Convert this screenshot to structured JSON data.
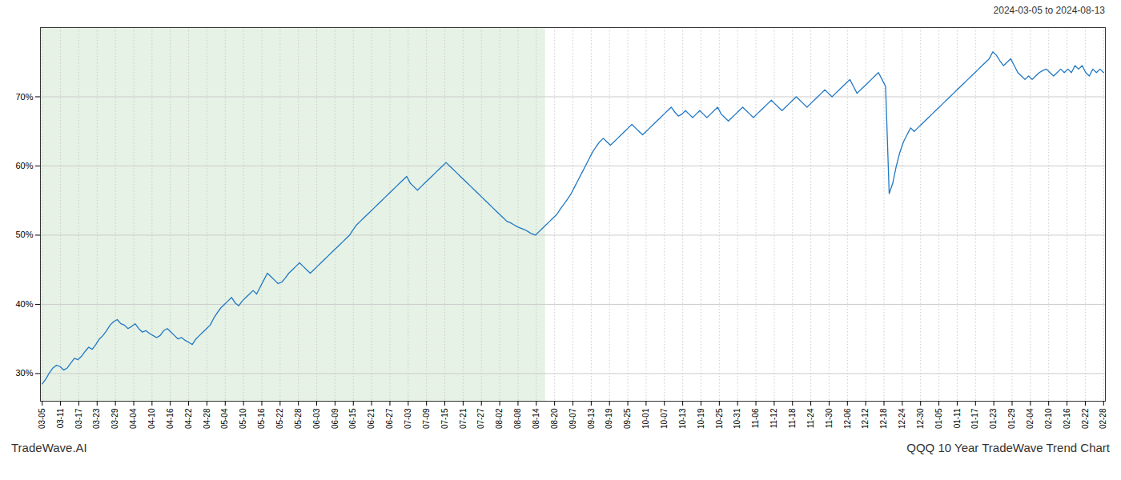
{
  "chart_data": {
    "type": "line",
    "subtitle": "2024-03-05 to 2024-08-13",
    "annotations": [
      "TradeWave.AI",
      "QQQ 10 Year TradeWave Trend Chart"
    ],
    "color": "#2178c4",
    "grid": true,
    "shaded_range": [
      -2.5603,
      140.819
    ],
    "shade_color": "#d4ead4",
    "xlim": [
      -0.5,
      297.5
    ],
    "xticks": [
      {
        "value": 0,
        "label": "03-05"
      },
      {
        "value": 5.1207,
        "label": "03-11"
      },
      {
        "value": 10.2414,
        "label": "03-17"
      },
      {
        "value": 15.3621,
        "label": "03-23"
      },
      {
        "value": 20.4828,
        "label": "03-29"
      },
      {
        "value": 25.6034,
        "label": "04-04"
      },
      {
        "value": 30.7241,
        "label": "04-10"
      },
      {
        "value": 35.8448,
        "label": "04-16"
      },
      {
        "value": 40.9655,
        "label": "04-22"
      },
      {
        "value": 46.0862,
        "label": "04-28"
      },
      {
        "value": 51.2069,
        "label": "05-04"
      },
      {
        "value": 56.3276,
        "label": "05-10"
      },
      {
        "value": 61.4483,
        "label": "05-16"
      },
      {
        "value": 66.569,
        "label": "05-22"
      },
      {
        "value": 71.6897,
        "label": "05-28"
      },
      {
        "value": 76.8103,
        "label": "06-03"
      },
      {
        "value": 81.931,
        "label": "06-09"
      },
      {
        "value": 87.0517,
        "label": "06-15"
      },
      {
        "value": 92.1724,
        "label": "06-21"
      },
      {
        "value": 97.2931,
        "label": "06-27"
      },
      {
        "value": 102.4138,
        "label": "07-03"
      },
      {
        "value": 107.5345,
        "label": "07-09"
      },
      {
        "value": 112.6552,
        "label": "07-15"
      },
      {
        "value": 117.7759,
        "label": "07-21"
      },
      {
        "value": 122.8966,
        "label": "07-27"
      },
      {
        "value": 128.0172,
        "label": "08-02"
      },
      {
        "value": 133.1379,
        "label": "08-08"
      },
      {
        "value": 138.2586,
        "label": "08-14"
      },
      {
        "value": 143.3793,
        "label": "08-20"
      },
      {
        "value": 148.5,
        "label": "09-07"
      },
      {
        "value": 153.6207,
        "label": "09-13"
      },
      {
        "value": 158.7414,
        "label": "09-19"
      },
      {
        "value": 163.8621,
        "label": "09-25"
      },
      {
        "value": 168.9828,
        "label": "10-01"
      },
      {
        "value": 174.1034,
        "label": "10-07"
      },
      {
        "value": 179.2241,
        "label": "10-13"
      },
      {
        "value": 184.3448,
        "label": "10-19"
      },
      {
        "value": 189.4655,
        "label": "10-25"
      },
      {
        "value": 194.5862,
        "label": "10-31"
      },
      {
        "value": 199.7069,
        "label": "11-06"
      },
      {
        "value": 204.8276,
        "label": "11-12"
      },
      {
        "value": 209.9483,
        "label": "11-18"
      },
      {
        "value": 215.069,
        "label": "11-24"
      },
      {
        "value": 220.1897,
        "label": "11-30"
      },
      {
        "value": 225.3103,
        "label": "12-06"
      },
      {
        "value": 230.431,
        "label": "12-12"
      },
      {
        "value": 235.5517,
        "label": "12-18"
      },
      {
        "value": 240.6724,
        "label": "12-24"
      },
      {
        "value": 245.7931,
        "label": "12-30"
      },
      {
        "value": 250.9138,
        "label": "01-05"
      },
      {
        "value": 256.0345,
        "label": "01-11"
      },
      {
        "value": 261.1552,
        "label": "01-17"
      },
      {
        "value": 266.2759,
        "label": "01-23"
      },
      {
        "value": 271.3966,
        "label": "01-29"
      },
      {
        "value": 276.5172,
        "label": "02-04"
      },
      {
        "value": 281.6379,
        "label": "02-10"
      },
      {
        "value": 286.7586,
        "label": "02-16"
      },
      {
        "value": 291.8793,
        "label": "02-22"
      },
      {
        "value": 297,
        "label": "02-28"
      }
    ],
    "ylim": [
      26,
      80
    ],
    "yticks": [
      {
        "value": 30,
        "label": "30%"
      },
      {
        "value": 40,
        "label": "40%"
      },
      {
        "value": 50,
        "label": "50%"
      },
      {
        "value": 60,
        "label": "60%"
      },
      {
        "value": 70,
        "label": "70%"
      }
    ],
    "x": [
      0,
      1,
      2,
      3,
      4,
      5,
      6,
      7,
      8,
      9,
      10,
      11,
      12,
      13,
      14,
      15,
      16,
      17,
      18,
      19,
      20,
      21,
      22,
      23,
      24,
      25,
      26,
      27,
      28,
      29,
      30,
      31,
      32,
      33,
      34,
      35,
      36,
      37,
      38,
      39,
      40,
      41,
      42,
      43,
      44,
      45,
      46,
      47,
      48,
      49,
      50,
      51,
      52,
      53,
      54,
      55,
      56,
      57,
      58,
      59,
      60,
      61,
      62,
      63,
      64,
      65,
      66,
      67,
      68,
      69,
      70,
      71,
      72,
      73,
      74,
      75,
      76,
      77,
      78,
      79,
      80,
      81,
      82,
      83,
      84,
      85,
      86,
      87,
      88,
      89,
      90,
      91,
      92,
      93,
      94,
      95,
      96,
      97,
      98,
      99,
      100,
      101,
      102,
      103,
      104,
      105,
      106,
      107,
      108,
      109,
      110,
      111,
      112,
      113,
      114,
      115,
      116,
      117,
      118,
      119,
      120,
      121,
      122,
      123,
      124,
      125,
      126,
      127,
      128,
      129,
      130,
      131,
      132,
      133,
      134,
      135,
      136,
      137,
      138,
      139,
      140,
      141,
      142,
      143,
      144,
      145,
      146,
      147,
      148,
      149,
      150,
      151,
      152,
      153,
      154,
      155,
      156,
      157,
      158,
      159,
      160,
      161,
      162,
      163,
      164,
      165,
      166,
      167,
      168,
      169,
      170,
      171,
      172,
      173,
      174,
      175,
      176,
      177,
      178,
      179,
      180,
      181,
      182,
      183,
      184,
      185,
      186,
      187,
      188,
      189,
      190,
      191,
      192,
      193,
      194,
      195,
      196,
      197,
      198,
      199,
      200,
      201,
      202,
      203,
      204,
      205,
      206,
      207,
      208,
      209,
      210,
      211,
      212,
      213,
      214,
      215,
      216,
      217,
      218,
      219,
      220,
      221,
      222,
      223,
      224,
      225,
      226,
      227,
      228,
      229,
      230,
      231,
      232,
      233,
      234,
      235,
      236,
      237,
      238,
      239,
      240,
      241,
      242,
      243,
      244,
      245,
      246,
      247,
      248,
      249,
      250,
      251,
      252,
      253,
      254,
      255,
      256,
      257,
      258,
      259,
      260,
      261,
      262,
      263,
      264,
      265,
      266,
      267,
      268,
      269,
      270,
      271,
      272,
      273,
      274,
      275,
      276,
      277,
      278,
      279,
      280,
      281,
      282,
      283,
      284,
      285,
      286,
      287,
      288,
      289,
      290,
      291,
      292,
      293,
      294,
      295,
      296,
      297
    ],
    "values": [
      28.5,
      29.2,
      30.1,
      30.8,
      31.2,
      31.0,
      30.5,
      30.8,
      31.5,
      32.2,
      32.0,
      32.5,
      33.2,
      33.8,
      33.5,
      34.2,
      35.0,
      35.5,
      36.2,
      37.0,
      37.5,
      37.8,
      37.2,
      37.0,
      36.5,
      36.8,
      37.2,
      36.5,
      36.0,
      36.2,
      35.8,
      35.5,
      35.2,
      35.5,
      36.2,
      36.5,
      36.0,
      35.5,
      35.0,
      35.2,
      34.8,
      34.5,
      34.2,
      35.0,
      35.5,
      36.0,
      36.5,
      37.0,
      38.0,
      38.8,
      39.5,
      40.0,
      40.5,
      41.0,
      40.2,
      39.8,
      40.5,
      41.0,
      41.5,
      42.0,
      41.5,
      42.5,
      43.5,
      44.5,
      44.0,
      43.5,
      43.0,
      43.2,
      43.8,
      44.5,
      45.0,
      45.5,
      46.0,
      45.5,
      45.0,
      44.5,
      45.0,
      45.5,
      46.0,
      46.5,
      47.0,
      47.5,
      48.0,
      48.5,
      49.0,
      49.5,
      50.0,
      50.8,
      51.5,
      52.0,
      52.5,
      53.0,
      53.5,
      54.0,
      54.5,
      55.0,
      55.5,
      56.0,
      56.5,
      57.0,
      57.5,
      58.0,
      58.5,
      57.5,
      57.0,
      56.5,
      57.0,
      57.5,
      58.0,
      58.5,
      59.0,
      59.5,
      60.0,
      60.5,
      60.0,
      59.5,
      59.0,
      58.5,
      58.0,
      57.5,
      57.0,
      56.5,
      56.0,
      55.5,
      55.0,
      54.5,
      54.0,
      53.5,
      53.0,
      52.5,
      52.0,
      51.8,
      51.5,
      51.2,
      51.0,
      50.8,
      50.5,
      50.2,
      50.0,
      50.5,
      51.0,
      51.5,
      52.0,
      52.5,
      53.0,
      53.8,
      54.5,
      55.2,
      56.0,
      57.0,
      58.0,
      59.0,
      60.0,
      61.0,
      62.0,
      62.8,
      63.5,
      64.0,
      63.5,
      63.0,
      63.5,
      64.0,
      64.5,
      65.0,
      65.5,
      66.0,
      65.5,
      65.0,
      64.5,
      65.0,
      65.5,
      66.0,
      66.5,
      67.0,
      67.5,
      68.0,
      68.5,
      67.8,
      67.2,
      67.5,
      68.0,
      67.5,
      67.0,
      67.5,
      68.0,
      67.5,
      67.0,
      67.5,
      68.0,
      68.5,
      67.5,
      67.0,
      66.5,
      67.0,
      67.5,
      68.0,
      68.5,
      68.0,
      67.5,
      67.0,
      67.5,
      68.0,
      68.5,
      69.0,
      69.5,
      69.0,
      68.5,
      68.0,
      68.5,
      69.0,
      69.5,
      70.0,
      69.5,
      69.0,
      68.5,
      69.0,
      69.5,
      70.0,
      70.5,
      71.0,
      70.5,
      70.0,
      70.5,
      71.0,
      71.5,
      72.0,
      72.5,
      71.5,
      70.5,
      71.0,
      71.5,
      72.0,
      72.5,
      73.0,
      73.5,
      72.5,
      71.5,
      56.0,
      57.5,
      60.0,
      62.0,
      63.5,
      64.5,
      65.5,
      65.0,
      65.5,
      66.0,
      66.5,
      67.0,
      67.5,
      68.0,
      68.5,
      69.0,
      69.5,
      70.0,
      70.5,
      71.0,
      71.5,
      72.0,
      72.5,
      73.0,
      73.5,
      74.0,
      74.5,
      75.0,
      75.5,
      76.5,
      76.0,
      75.2,
      74.5,
      75.0,
      75.5,
      74.5,
      73.5,
      73.0,
      72.5,
      73.0,
      72.5,
      73.0,
      73.5,
      73.8,
      74.0,
      73.5,
      73.0,
      73.5,
      74.0,
      73.5,
      74.0,
      73.5,
      74.5,
      74.0,
      74.5,
      73.5,
      73.0,
      74.0,
      73.5,
      74.0,
      73.5
    ]
  }
}
